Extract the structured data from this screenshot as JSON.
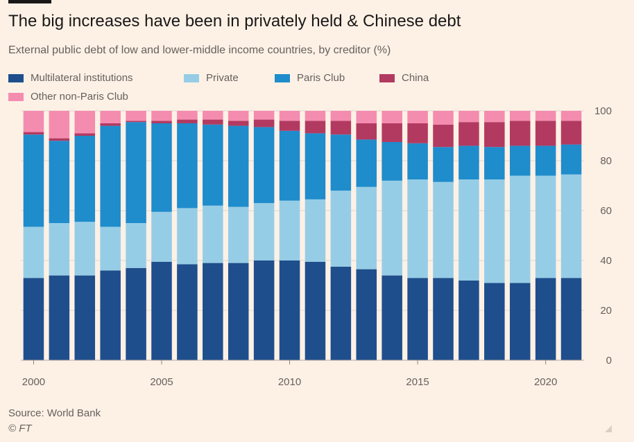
{
  "header": {
    "title": "The big increases have been in privately held & Chinese debt",
    "subtitle": "External public debt of low and lower-middle income countries, by creditor (%)"
  },
  "footer": {
    "source": "Source: World Bank",
    "credit": "© FT"
  },
  "chart_data": {
    "type": "bar",
    "stacked": true,
    "ylim": [
      0,
      100
    ],
    "yticks": [
      0,
      20,
      40,
      60,
      80,
      100
    ],
    "xtick_labels": [
      "2000",
      "2005",
      "2010",
      "2015",
      "2020"
    ],
    "y_axis_position": "right",
    "legend_position": "top-left",
    "categories": [
      2000,
      2001,
      2002,
      2003,
      2004,
      2005,
      2006,
      2007,
      2008,
      2009,
      2010,
      2011,
      2012,
      2013,
      2014,
      2015,
      2016,
      2017,
      2018,
      2019,
      2020,
      2021
    ],
    "series": [
      {
        "name": "Multilateral institutions",
        "color": "#1f4e8c",
        "values": [
          33,
          34,
          34,
          36,
          37,
          39.5,
          38.5,
          39,
          39,
          40,
          40,
          39.5,
          37.5,
          36.5,
          34,
          33,
          33,
          32,
          31,
          31,
          33,
          33
        ]
      },
      {
        "name": "Private",
        "color": "#96cde6",
        "values": [
          20.5,
          21,
          21.5,
          17.5,
          18,
          20,
          22.5,
          23,
          22.5,
          23,
          24,
          25,
          30.5,
          33,
          38,
          39.5,
          38.5,
          40.5,
          41.5,
          43,
          41,
          41.5
        ]
      },
      {
        "name": "Paris Club",
        "color": "#1f8ccc",
        "values": [
          37,
          33,
          34.5,
          40.5,
          40.5,
          35.5,
          34,
          32.5,
          32.5,
          30.5,
          28,
          26.5,
          22.5,
          19,
          15.5,
          14.5,
          14,
          13.5,
          13,
          12,
          12,
          12
        ]
      },
      {
        "name": "China",
        "color": "#b23a61",
        "values": [
          1,
          1,
          1,
          1,
          0.5,
          1,
          1.5,
          2,
          2,
          3,
          4,
          5,
          5.5,
          6.5,
          7.5,
          8,
          9,
          9.5,
          10,
          10,
          10,
          9.5
        ]
      },
      {
        "name": "Other non-Paris Club",
        "color": "#f48cb0",
        "values": [
          8.5,
          11,
          9,
          5,
          4,
          4,
          3.5,
          3.5,
          4,
          3.5,
          4,
          4,
          4,
          5,
          5,
          5,
          5.5,
          4.5,
          4.5,
          4,
          4,
          4
        ]
      }
    ]
  }
}
